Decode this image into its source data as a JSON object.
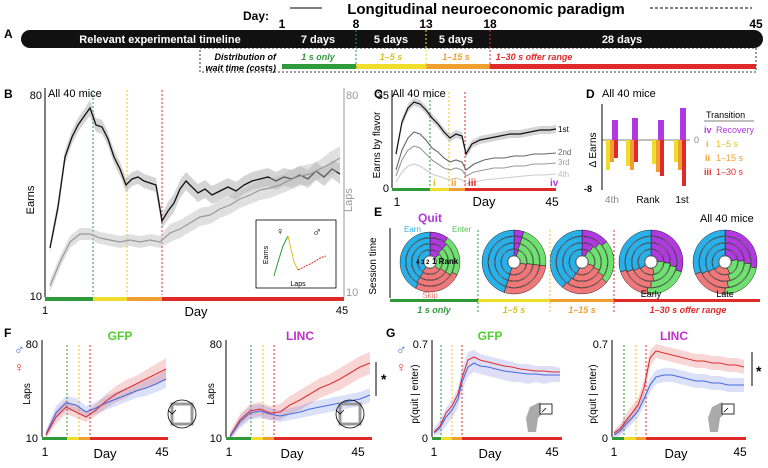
{
  "colors": {
    "green": "#2e9a3a",
    "yellow": "#f0dc2a",
    "orange": "#f0a030",
    "red": "#e02a2a",
    "purple": "#b03ae0",
    "cyan": "#2ab0e8",
    "pink": "#f07878",
    "lime": "#70e070",
    "male": "#4a6ae0",
    "female": "#e03030"
  },
  "panelA": {
    "label": "A",
    "day_label": "Day:",
    "title": "Longitudinal neuroeconomic paradigm",
    "ticks": [
      "1",
      "8",
      "13",
      "18",
      "45"
    ],
    "bar_title": "Relevant experimental timeline",
    "segments": [
      "7 days",
      "5 days",
      "5 days",
      "28 days"
    ],
    "dist_label_1": "Distribution of",
    "dist_label_2": "wait time (costs)",
    "ranges": [
      "1 s only",
      "1–5 s",
      "1–15 s",
      "1–30 s offer range"
    ]
  },
  "panelB": {
    "label": "B",
    "subtitle": "All 40 mice",
    "ylabel_left": "Earns",
    "ylabel_right": "Laps",
    "y_top": "80",
    "y_bottom": "10",
    "y_top_right": "80",
    "y_bottom_right": "10",
    "xlabel": "Day",
    "x_start": "1",
    "x_end": "45",
    "inset_xlabel": "Laps",
    "inset_ylabel": "Earns",
    "female_symbol": "♀",
    "male_symbol": "♂"
  },
  "panelC": {
    "label": "C",
    "subtitle": "All 40 mice",
    "ylabel": "Earns by flavor",
    "y_top": "35",
    "y_bottom": "0",
    "xlabel": "Day",
    "x_start": "1",
    "x_end": "45",
    "rank_labels": [
      "1st",
      "2nd",
      "3rd",
      "4th"
    ],
    "roman": [
      "i",
      "ii",
      "iii",
      "iv"
    ]
  },
  "panelD": {
    "label": "D",
    "subtitle": "All 40 mice",
    "ylabel": "Δ Earns",
    "y_zero": "0",
    "y_min": "-8",
    "legend_title": "Transition",
    "legend": [
      {
        "roman": "iv",
        "text": "Recovery"
      },
      {
        "roman": "i",
        "text": "1–5 s"
      },
      {
        "roman": "ii",
        "text": "1–15 s"
      },
      {
        "roman": "iii",
        "text": "1–30 s"
      }
    ],
    "x_labels": [
      "4th",
      "Rank",
      "1st"
    ]
  },
  "panelE": {
    "label": "E",
    "ylabel": "Session time",
    "quit": "Quit",
    "earn": "Earn",
    "enter": "Enter",
    "skip": "Skip",
    "rank_text": "1 Rank",
    "rank_inner": "4 3 2",
    "subtitle": "All 40 mice",
    "early": "Early",
    "late": "Late",
    "ranges": [
      "1 s only",
      "1–5 s",
      "1–15 s",
      "1–30 s offer range"
    ]
  },
  "panelF": {
    "label": "F",
    "male_symbol": "♂",
    "female_symbol": "♀",
    "ylabel": "Laps",
    "gfp_title": "GFP",
    "linc_title": "LINC",
    "y_top": "80",
    "y_bottom": "10",
    "xlabel": "Day",
    "x_start": "1",
    "x_end": "45",
    "sig": "*"
  },
  "panelG": {
    "label": "G",
    "male_symbol": "♂",
    "female_symbol": "♀",
    "ylabel": "p(quit | enter)",
    "gfp_title": "GFP",
    "linc_title": "LINC",
    "y_top": "0.7",
    "y_bottom": "0",
    "xlabel": "Day",
    "x_start": "1",
    "x_end": "45",
    "sig": "*"
  }
}
